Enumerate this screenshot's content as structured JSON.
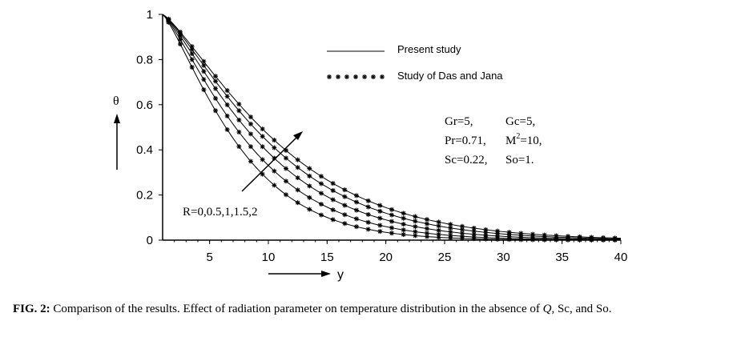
{
  "chart_data": {
    "type": "line",
    "xlabel": "y",
    "ylabel": "θ",
    "xlim": [
      1,
      40
    ],
    "ylim": [
      0,
      1
    ],
    "xticks": [
      "5",
      "10",
      "15",
      "20",
      "25",
      "30",
      "35",
      "40"
    ],
    "yticks": [
      "0",
      "0.2",
      "0.4",
      "0.6",
      "0.8",
      "1"
    ],
    "legend": {
      "placement": "top-center",
      "line_label": "Present study",
      "marker_label": "Study of Das and Jana"
    },
    "parameters": [
      "Gr=5,",
      "Gc=5,",
      "Pr=0.71,",
      "M",
      "2",
      "=10,",
      "Sc=0.22,",
      "So=1."
    ],
    "annotation": "R=0,0.5,1,1.5,2",
    "series": [
      {
        "R": 0,
        "decay_scale": 7.2
      },
      {
        "R": 0.5,
        "decay_scale": 8.3
      },
      {
        "R": 1,
        "decay_scale": 9.4
      },
      {
        "R": 1.5,
        "decay_scale": 10.4
      },
      {
        "R": 2,
        "decay_scale": 11.2
      }
    ]
  },
  "caption": {
    "label": "FIG. 2:",
    "text_before": " Comparison of the results. Effect of radiation parameter on temperature distribution in the absence of ",
    "q": "Q",
    "text_after": ", Sc, and So."
  }
}
